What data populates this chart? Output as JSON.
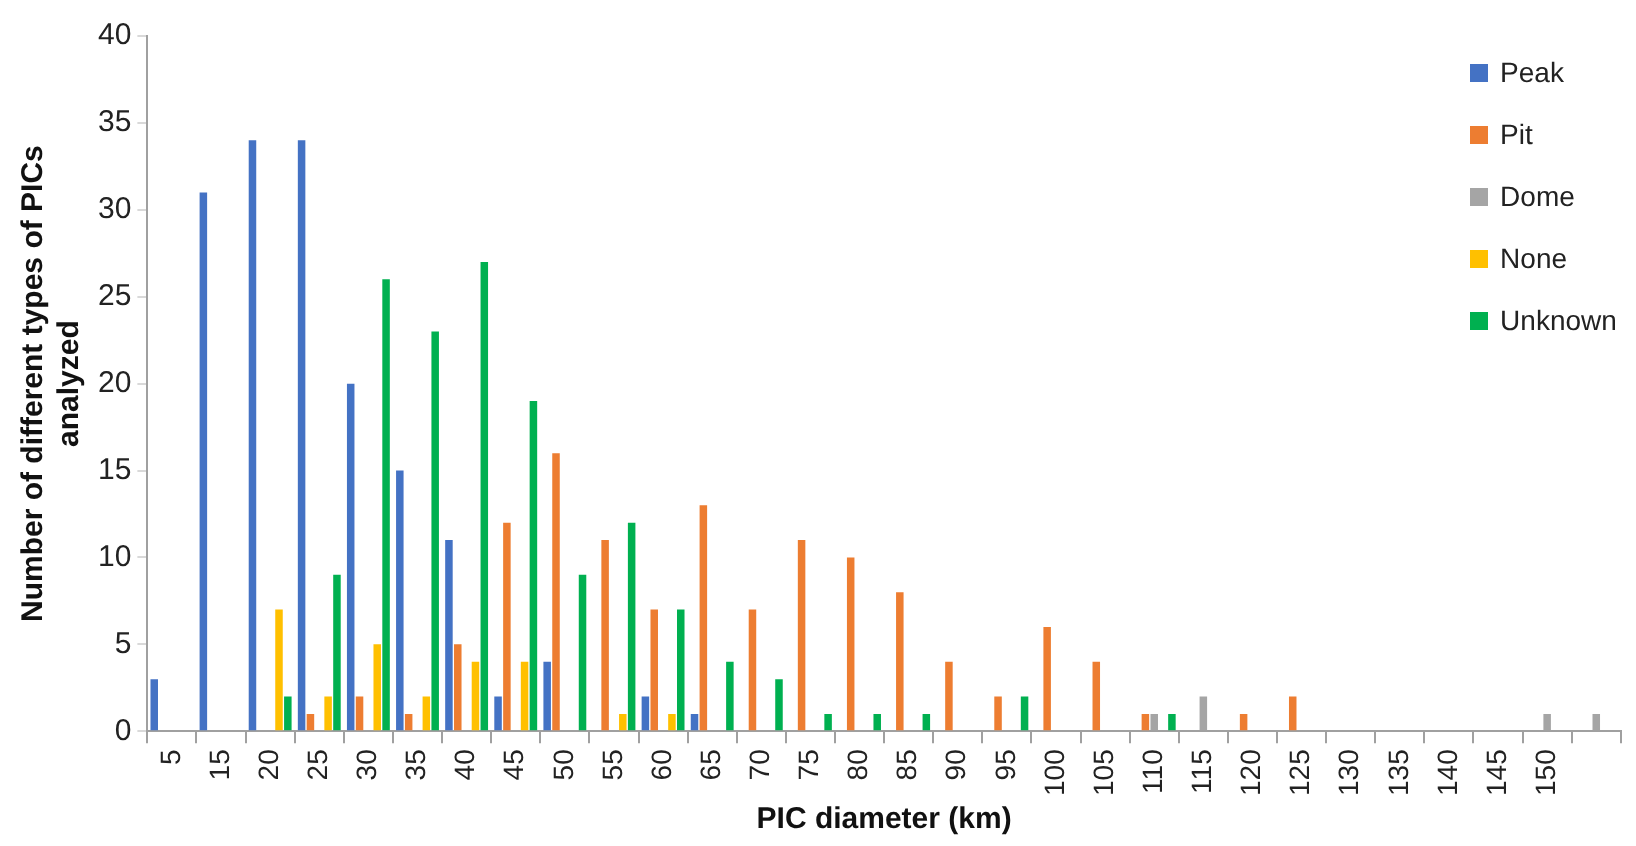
{
  "chart_data": {
    "type": "bar",
    "xlabel": "PIC diameter (km)",
    "ylabel": "Number of different types of PICs analyzed",
    "categories": [
      "5",
      "15",
      "20",
      "25",
      "30",
      "35",
      "40",
      "45",
      "50",
      "55",
      "60",
      "65",
      "70",
      "75",
      "80",
      "85",
      "90",
      "95",
      "100",
      "105",
      "110",
      "115",
      "120",
      "125",
      "130",
      "135",
      "140",
      "145",
      "150",
      null
    ],
    "series": [
      {
        "name": "Peak",
        "color": "#4472c4",
        "values": [
          3,
          31,
          34,
          34,
          20,
          15,
          11,
          2,
          4,
          0,
          2,
          1,
          0,
          0,
          0,
          0,
          0,
          0,
          0,
          0,
          0,
          0,
          0,
          0,
          0,
          0,
          0,
          0,
          0,
          0
        ]
      },
      {
        "name": "Pit",
        "color": "#ed7d31",
        "values": [
          0,
          0,
          0,
          1,
          2,
          1,
          5,
          12,
          16,
          11,
          7,
          13,
          7,
          11,
          10,
          8,
          4,
          2,
          6,
          4,
          1,
          0,
          1,
          2,
          0,
          0,
          0,
          0,
          0,
          0
        ]
      },
      {
        "name": "Dome",
        "color": "#a5a5a5",
        "values": [
          0,
          0,
          0,
          0,
          0,
          0,
          0,
          0,
          0,
          0,
          0,
          0,
          0,
          0,
          0,
          0,
          0,
          0,
          0,
          0,
          1,
          2,
          0,
          0,
          0,
          0,
          0,
          0,
          1,
          1
        ]
      },
      {
        "name": "None",
        "color": "#ffc000",
        "values": [
          0,
          0,
          7,
          2,
          5,
          2,
          4,
          4,
          0,
          1,
          1,
          0,
          0,
          0,
          0,
          0,
          0,
          0,
          0,
          0,
          0,
          0,
          0,
          0,
          0,
          0,
          0,
          0,
          0,
          0
        ]
      },
      {
        "name": "Unknown",
        "color": "#00b050",
        "values": [
          0,
          0,
          2,
          9,
          26,
          23,
          27,
          19,
          9,
          12,
          7,
          4,
          3,
          1,
          1,
          1,
          0,
          2,
          0,
          0,
          1,
          0,
          0,
          0,
          0,
          0,
          0,
          0,
          0,
          0
        ]
      }
    ],
    "ylim": [
      0,
      40
    ],
    "yticks": [
      0,
      5,
      10,
      15,
      20,
      25,
      30,
      35,
      40
    ],
    "grid": false,
    "legend": "top right"
  }
}
